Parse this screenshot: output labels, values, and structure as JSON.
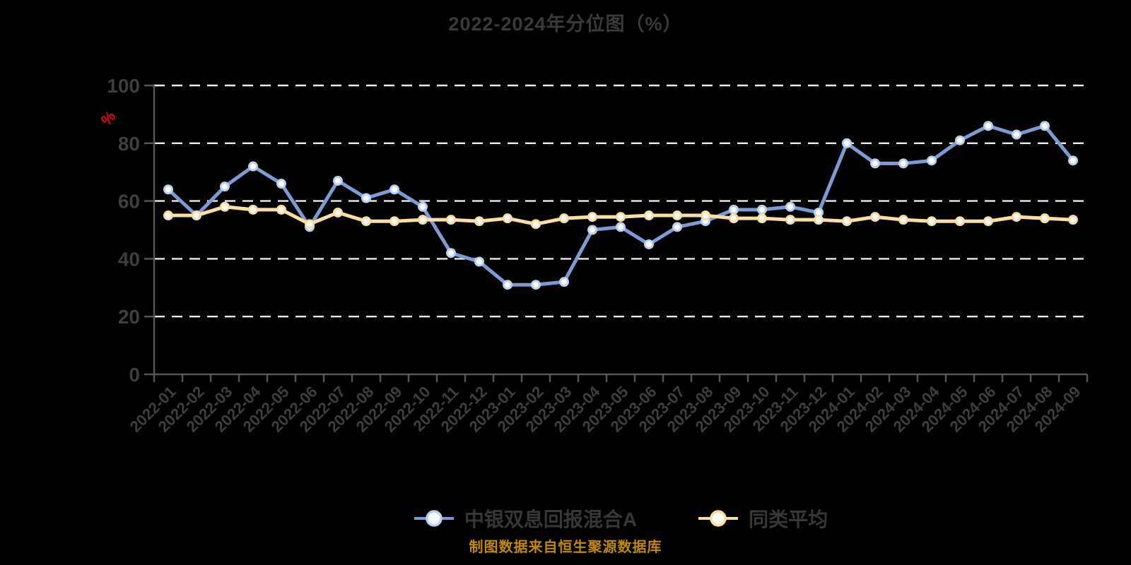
{
  "title": "2022-2024年分位图（%）",
  "footer": "制图数据来自恒生聚源数据库",
  "colors": {
    "background": "#000000",
    "title_text": "#3a3a3d",
    "tick_label": "#3e3e41",
    "axis_line": "#55565a",
    "gridline": "#ebebeb",
    "unit_label": "#e60012",
    "fund_line": "#7d9bd2",
    "fund_marker_ring": "#bccfee",
    "average_line": "#fadfa5",
    "average_marker_ring": "#f8ddA0",
    "footer_text": "#bd8a0e"
  },
  "chart_data": {
    "type": "line",
    "title": "2022-2024年分位图（%）",
    "ylabel": "%",
    "xlabel": "",
    "ylim": [
      0,
      100
    ],
    "yticks": [
      0,
      20,
      40,
      60,
      80,
      100
    ],
    "grid": "horizontal-dashed",
    "legend_position": "bottom",
    "x": [
      "2022-01",
      "2022-02",
      "2022-03",
      "2022-04",
      "2022-05",
      "2022-06",
      "2022-07",
      "2022-08",
      "2022-09",
      "2022-10",
      "2022-11",
      "2022-12",
      "2023-01",
      "2023-02",
      "2023-03",
      "2023-04",
      "2023-05",
      "2023-06",
      "2023-07",
      "2023-08",
      "2023-09",
      "2023-10",
      "2023-11",
      "2023-12",
      "2024-01",
      "2024-02",
      "2024-03",
      "2024-04",
      "2024-05",
      "2024-06",
      "2024-07",
      "2024-08",
      "2024-09"
    ],
    "series": [
      {
        "name": "中银双息回报混合A",
        "color": "#7d9bd2",
        "marker_stroke": "#bccfee",
        "values": [
          64,
          55,
          65,
          72,
          66,
          51,
          67,
          61,
          64,
          58,
          42,
          39,
          31,
          31,
          32,
          50,
          51,
          45,
          51,
          53,
          57,
          57,
          58,
          56,
          80,
          73,
          73,
          74,
          81,
          86,
          83,
          86,
          74
        ]
      },
      {
        "name": "同类平均",
        "color": "#fadfa5",
        "marker_stroke": "#f8dda0",
        "values": [
          55,
          55,
          58,
          57,
          57,
          52,
          56,
          53,
          53,
          53.5,
          53.5,
          53,
          54,
          52,
          54,
          54.5,
          54.5,
          55,
          55,
          55,
          54,
          54,
          53.5,
          53.5,
          53,
          54.5,
          53.5,
          53,
          53,
          53,
          54.5,
          54,
          53.5
        ]
      }
    ]
  }
}
